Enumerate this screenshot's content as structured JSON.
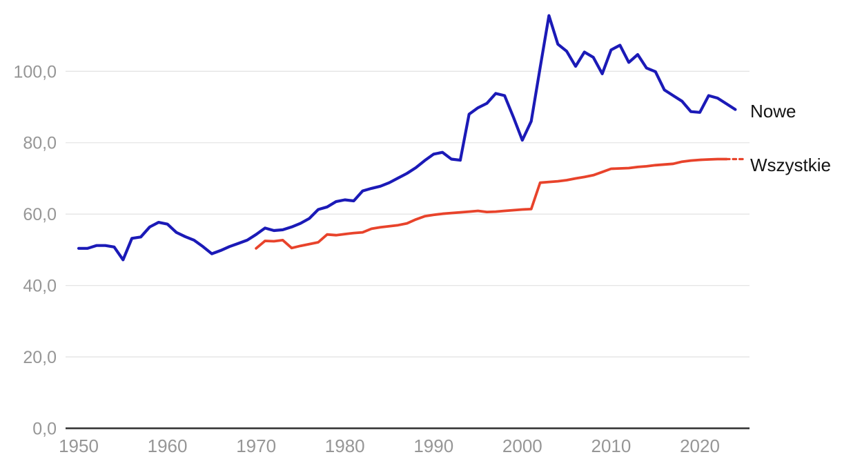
{
  "chart_data": {
    "type": "line",
    "title": "",
    "xlabel": "",
    "ylabel": "",
    "grid": "horizontal",
    "legend_position": "end-of-line-labels",
    "xlim": [
      1948.5,
      2025.8
    ],
    "ylim": [
      0,
      120
    ],
    "x_ticks": [
      1950,
      1960,
      1970,
      1980,
      1990,
      2000,
      2010,
      2020
    ],
    "x_tick_labels": [
      "1950",
      "1960",
      "1970",
      "1980",
      "1990",
      "2000",
      "2010",
      "2020"
    ],
    "y_ticks": [
      0,
      20,
      40,
      60,
      80,
      100
    ],
    "y_tick_labels": [
      "0,0",
      "20,0",
      "40,0",
      "60,0",
      "80,0",
      "100,0"
    ],
    "colors": {
      "axis": "#2f2f2f",
      "gridline": "#e4e4e4",
      "tick_text": "#969696",
      "label_text": "#141414"
    },
    "series": [
      {
        "name": "Nowe",
        "color": "#1b1ab7",
        "start_year": 1970,
        "dotted_tail": false,
        "values_start_year": 1950,
        "values": [
          50.4,
          50.4,
          51.2,
          51.2,
          50.8,
          47.2,
          53.2,
          53.6,
          56.4,
          57.7,
          57.2,
          54.9,
          53.7,
          52.7,
          50.9,
          48.9,
          49.8,
          50.9,
          51.8,
          52.7,
          54.3,
          56.1,
          55.4,
          55.6,
          56.4,
          57.4,
          58.8,
          61.3,
          62.0,
          63.5,
          64.0,
          63.7,
          66.5,
          67.2,
          67.8,
          68.8,
          70.1,
          71.4,
          73.0,
          75.0,
          76.8,
          77.3,
          75.4,
          75.1,
          88.0,
          89.8,
          91.0,
          93.8,
          93.2,
          87.1,
          80.7,
          86.0,
          101.0,
          115.6,
          107.6,
          105.6,
          101.4,
          105.4,
          103.9,
          99.3,
          106.0,
          107.3,
          102.5,
          104.7,
          100.9,
          99.9,
          94.8,
          93.2,
          91.6,
          88.7,
          88.5,
          93.2,
          92.5,
          90.9,
          89.3
        ]
      },
      {
        "name": "Wszystkie",
        "color": "#e8432b",
        "dotted_tail": true,
        "values_start_year": 1970,
        "values": [
          50.4,
          52.5,
          52.4,
          52.7,
          50.5,
          51.1,
          51.6,
          52.1,
          54.3,
          54.1,
          54.4,
          54.7,
          54.9,
          55.9,
          56.3,
          56.6,
          56.9,
          57.4,
          58.5,
          59.4,
          59.8,
          60.1,
          60.3,
          60.5,
          60.7,
          60.9,
          60.6,
          60.7,
          60.9,
          61.1,
          61.3,
          61.4,
          68.8,
          69.0,
          69.2,
          69.5,
          70.0,
          70.4,
          70.9,
          71.8,
          72.7,
          72.8,
          72.9,
          73.2,
          73.4,
          73.7,
          73.9,
          74.1,
          74.7,
          75.0,
          75.2,
          75.3,
          75.4,
          75.4,
          75.4
        ]
      }
    ]
  }
}
